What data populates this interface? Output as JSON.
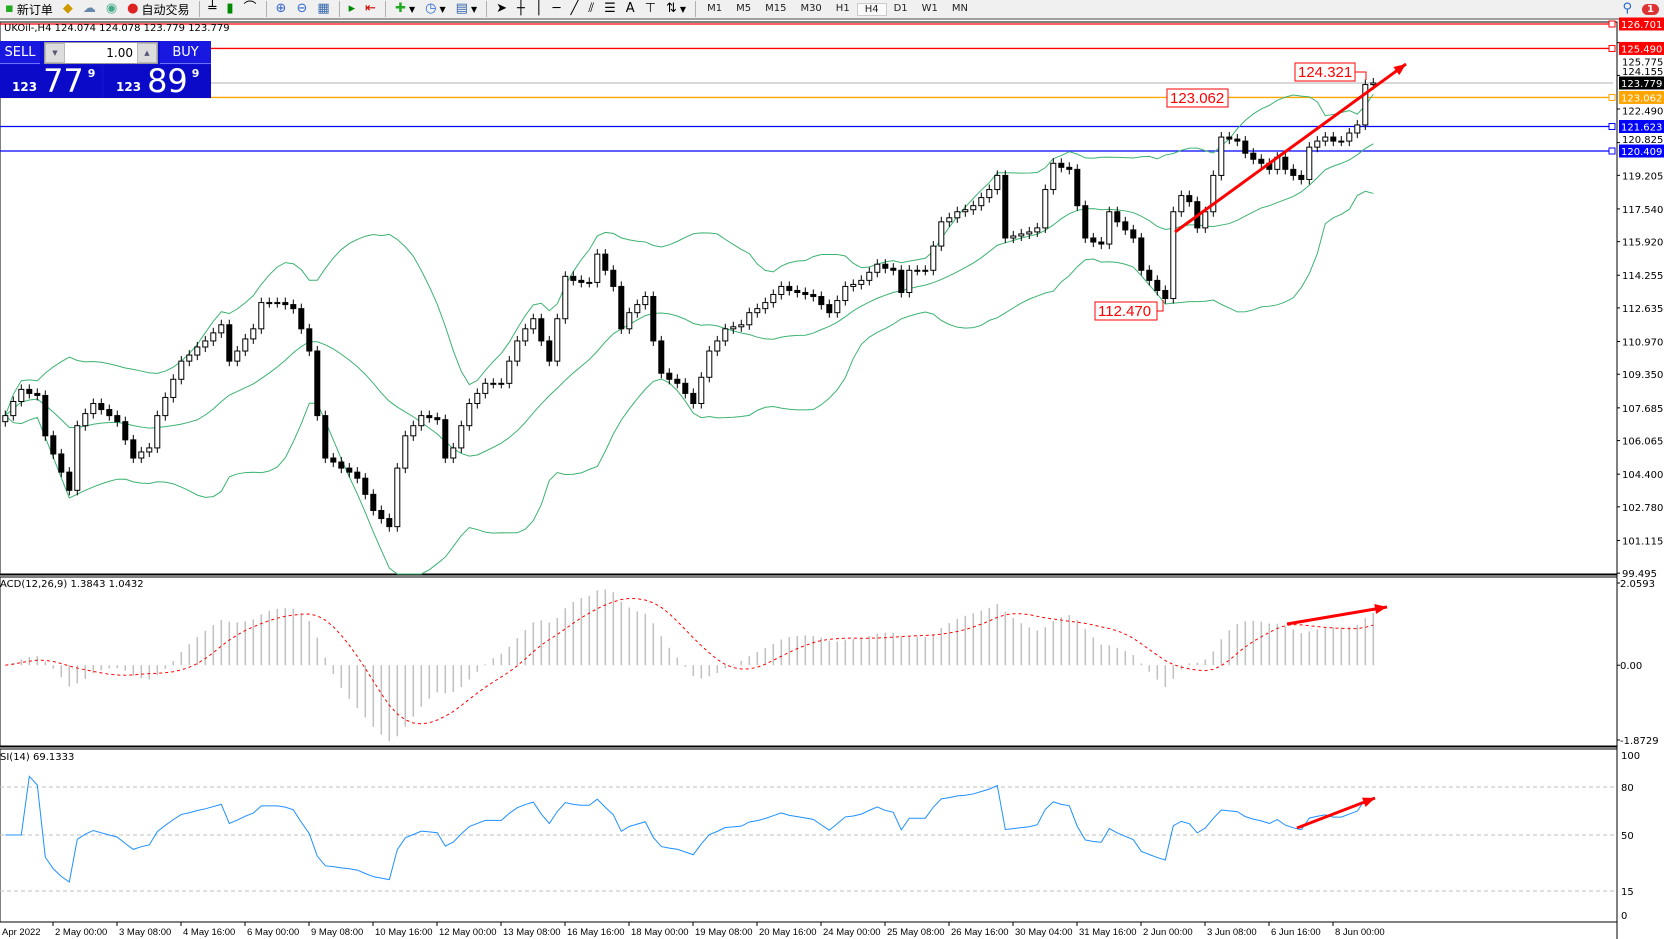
{
  "toolbar": {
    "new_order": "新订单",
    "auto_trade": "自动交易",
    "timeframes": [
      "M1",
      "M5",
      "M15",
      "M30",
      "H1",
      "H4",
      "D1",
      "W1",
      "MN"
    ],
    "active_timeframe": "H4",
    "notification_count": "1"
  },
  "info": "UKOil-,H4  124.074 124.078 123.779 123.779",
  "trade_panel": {
    "sell_label": "SELL",
    "buy_label": "BUY",
    "lot": "1.00",
    "sell_prefix": "123",
    "sell_big": "77",
    "sell_sup": "9",
    "buy_prefix": "123",
    "buy_big": "89",
    "buy_sup": "9"
  },
  "macd_label": "ACD(12,26,9) 1.3843 1.0432",
  "rsi_label": "SI(14) 69.1333",
  "chart_data": {
    "type": "candlestick",
    "symbol": "UKOil-",
    "timeframe": "H4",
    "price_ticks": [
      "125.775",
      "124.155",
      "122.490",
      "120.825",
      "119.205",
      "117.540",
      "115.920",
      "114.255",
      "112.635",
      "110.970",
      "109.350",
      "107.685",
      "106.065",
      "104.400",
      "102.780",
      "101.115",
      "99.495"
    ],
    "ylim": [
      99.495,
      126.701
    ],
    "time_labels": [
      "Apr 2022",
      "2 May 00:00",
      "3 May 08:00",
      "4 May 16:00",
      "6 May 00:00",
      "9 May 08:00",
      "10 May 16:00",
      "12 May 00:00",
      "13 May 08:00",
      "16 May 16:00",
      "18 May 00:00",
      "19 May 08:00",
      "20 May 16:00",
      "24 May 00:00",
      "25 May 08:00",
      "26 May 16:00",
      "30 May 04:00",
      "31 May 16:00",
      "2 Jun 00:00",
      "3 Jun 08:00",
      "6 Jun 16:00",
      "8 Jun 00:00"
    ],
    "closes": [
      107.3,
      108.0,
      108.6,
      108.4,
      108.3,
      106.3,
      105.4,
      104.5,
      103.6,
      106.8,
      107.4,
      107.9,
      107.6,
      107.3,
      107.0,
      106.1,
      105.2,
      105.5,
      105.7,
      107.3,
      108.2,
      109.1,
      110.0,
      110.3,
      110.7,
      111.0,
      111.4,
      111.8,
      110.0,
      110.5,
      111.1,
      111.6,
      112.9,
      112.9,
      112.9,
      112.8,
      112.6,
      111.6,
      110.5,
      107.3,
      105.2,
      105.0,
      104.7,
      104.5,
      104.2,
      103.4,
      102.6,
      102.2,
      101.8,
      104.7,
      106.3,
      106.8,
      107.3,
      107.2,
      107.1,
      105.2,
      105.7,
      106.8,
      107.9,
      108.4,
      108.9,
      108.9,
      108.9,
      110.0,
      111.0,
      111.6,
      112.1,
      111.0,
      110.0,
      112.1,
      114.2,
      114.0,
      113.9,
      113.9,
      115.3,
      114.5,
      113.7,
      111.6,
      112.4,
      112.8,
      113.2,
      111.0,
      109.4,
      109.1,
      108.9,
      108.4,
      107.9,
      109.2,
      110.5,
      111.0,
      111.6,
      111.7,
      111.8,
      112.4,
      112.6,
      112.9,
      113.3,
      113.7,
      113.5,
      113.4,
      113.3,
      113.2,
      112.8,
      112.4,
      113.0,
      113.7,
      113.8,
      114.0,
      114.4,
      114.8,
      114.6,
      114.5,
      113.4,
      114.5,
      114.5,
      114.5,
      115.7,
      116.9,
      117.1,
      117.4,
      117.5,
      117.7,
      118.1,
      118.5,
      119.2,
      116.1,
      116.2,
      116.3,
      116.4,
      116.6,
      118.5,
      119.8,
      119.6,
      119.5,
      117.7,
      116.1,
      115.9,
      115.8,
      117.4,
      116.9,
      116.5,
      116.1,
      114.5,
      114.0,
      113.5,
      113.1,
      117.4,
      118.2,
      117.9,
      116.6,
      117.4,
      119.2,
      121.1,
      121.0,
      120.9,
      120.3,
      120.0,
      119.8,
      119.5,
      120.1,
      119.5,
      119.2,
      119.0,
      120.6,
      120.9,
      121.1,
      120.9,
      120.9,
      121.3,
      121.7,
      123.7,
      123.779
    ],
    "hlines": [
      {
        "price": 126.701,
        "label": "126.701",
        "color": "#ff0000"
      },
      {
        "price": 125.49,
        "label": "125.490",
        "color": "#ff0000"
      },
      {
        "price": 123.779,
        "label": "123.779",
        "color": "#c0c0c0",
        "label_bg": "#000000"
      },
      {
        "price": 123.062,
        "label": "123.062",
        "color": "#ffa500"
      },
      {
        "price": 121.623,
        "label": "121.623",
        "color": "#0000ff"
      },
      {
        "price": 120.409,
        "label": "120.409",
        "color": "#0000ff"
      }
    ],
    "price_labels": [
      "124.321",
      "123.062",
      "112.470"
    ],
    "indicators": {
      "bollinger": {
        "period": 20,
        "deviation": 2,
        "color": "#3cb371"
      },
      "macd": {
        "fast": 12,
        "slow": 26,
        "signal": 9,
        "value": 1.3843,
        "signal_value": 1.0432,
        "ylim": [
          -1.8729,
          2.0593
        ],
        "ticks": [
          "2.0593",
          "0.00",
          "-1.8729"
        ],
        "hist_color": "#c0c0c0",
        "signal_color": "#ff0000"
      },
      "rsi": {
        "period": 14,
        "value": 69.1333,
        "levels": [
          "80",
          "50",
          "15"
        ],
        "ticks": [
          "100",
          "80",
          "50",
          "15",
          "0"
        ],
        "color": "#1e90ff"
      }
    },
    "annotation_color": "#ff0000"
  }
}
